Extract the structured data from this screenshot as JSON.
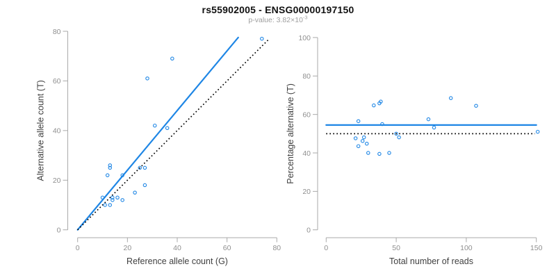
{
  "header": {
    "title": "rs55902005 - ENSG00000197150",
    "subtitle_base": "p-value: 3.82×10",
    "subtitle_exponent": "-3"
  },
  "colors": {
    "accent_blue": "#1E86E5",
    "dotted_line": "#000000",
    "axis_line": "#A9A9A9",
    "tick_label": "#8F8F8F",
    "axis_title": "#404040"
  },
  "chart_data": [
    {
      "type": "scatter",
      "name": "allele-counts-plot",
      "xlabel": "Reference allele count (G)",
      "ylabel": "Alternative allele count (T)",
      "xlim": [
        0,
        80
      ],
      "ylim": [
        0,
        80
      ],
      "xticks": [
        0,
        20,
        40,
        60,
        80
      ],
      "yticks": [
        0,
        20,
        40,
        60,
        80
      ],
      "grid": false,
      "legend": "none",
      "points": [
        [
          74,
          77
        ],
        [
          38,
          69
        ],
        [
          28,
          61
        ],
        [
          31,
          42
        ],
        [
          36,
          41
        ],
        [
          13,
          26
        ],
        [
          13,
          25
        ],
        [
          12,
          22
        ],
        [
          18,
          22
        ],
        [
          25,
          25
        ],
        [
          27,
          25
        ],
        [
          27,
          18
        ],
        [
          23,
          15
        ],
        [
          10,
          13
        ],
        [
          14,
          13
        ],
        [
          16,
          13
        ],
        [
          14,
          12
        ],
        [
          18,
          12
        ],
        [
          11,
          10
        ],
        [
          13,
          10
        ]
      ],
      "lines": [
        {
          "name": "fit-line",
          "style": "solid",
          "color_key": "accent_blue",
          "from": [
            0,
            0
          ],
          "to": [
            64.5,
            77.5
          ]
        },
        {
          "name": "identity-line",
          "style": "dotted",
          "color_key": "dotted_line",
          "from": [
            0,
            0
          ],
          "to": [
            77,
            77
          ]
        }
      ]
    },
    {
      "type": "scatter",
      "name": "percentage-plot",
      "xlabel": "Total number of reads",
      "ylabel": "Percentage alternative (T)",
      "xlim": [
        0,
        150
      ],
      "ylim": [
        0,
        100
      ],
      "xticks": [
        0,
        50,
        100,
        150
      ],
      "yticks": [
        0,
        20,
        40,
        60,
        80,
        100
      ],
      "grid": false,
      "legend": "none",
      "points": [
        [
          151,
          51.0
        ],
        [
          107,
          64.5
        ],
        [
          89,
          68.5
        ],
        [
          73,
          57.5
        ],
        [
          77,
          53.2
        ],
        [
          39,
          66.7
        ],
        [
          38,
          65.8
        ],
        [
          34,
          64.7
        ],
        [
          40,
          55.0
        ],
        [
          50,
          50.0
        ],
        [
          52,
          48.1
        ],
        [
          45,
          40.0
        ],
        [
          38,
          39.5
        ],
        [
          23,
          56.5
        ],
        [
          27,
          48.1
        ],
        [
          29,
          44.8
        ],
        [
          26,
          46.2
        ],
        [
          30,
          40.0
        ],
        [
          21,
          47.6
        ],
        [
          23,
          43.5
        ]
      ],
      "lines": [
        {
          "name": "mean-percentage-line",
          "style": "solid",
          "color_key": "accent_blue",
          "from": [
            0,
            54.5
          ],
          "to": [
            150,
            54.5
          ]
        },
        {
          "name": "null-50pct-line",
          "style": "dotted",
          "color_key": "dotted_line",
          "from": [
            0,
            50
          ],
          "to": [
            149,
            50
          ]
        }
      ]
    }
  ]
}
